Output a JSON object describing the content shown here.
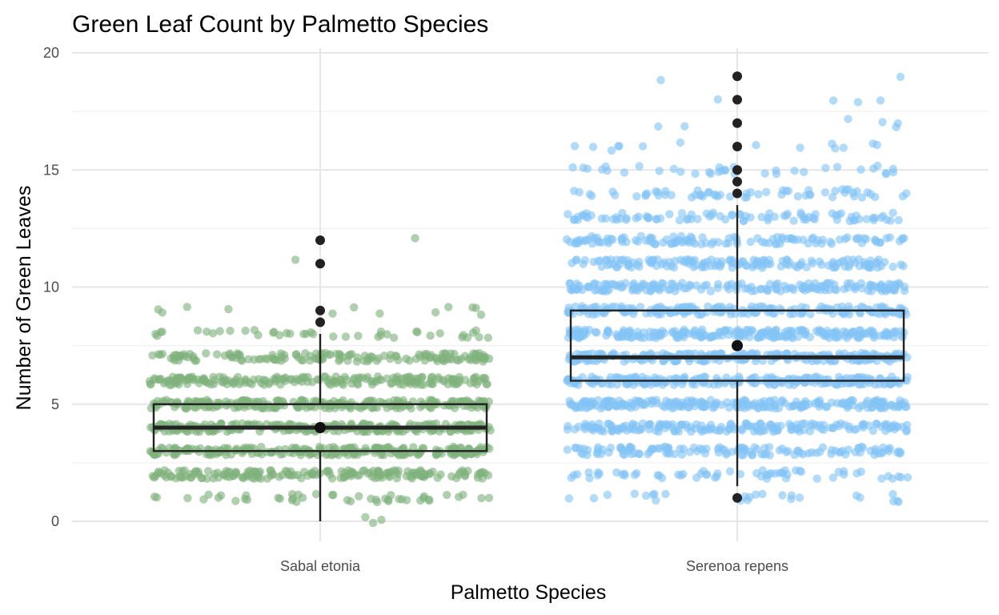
{
  "chart_data": {
    "type": "box",
    "title": "Green Leaf Count by Palmetto Species",
    "xlabel": "Palmetto Species",
    "ylabel": "Number of Green Leaves",
    "ylim": [
      -0.5,
      20.2
    ],
    "yticks": [
      0,
      5,
      10,
      15,
      20
    ],
    "ytick_labels": [
      "0",
      "5",
      "10",
      "15",
      "20"
    ],
    "categories": [
      "Sabal etonia",
      "Serenoa repens"
    ],
    "colors": {
      "Sabal etonia": "#80b17d",
      "Serenoa repens": "#82c4f5",
      "box_line": "#222222",
      "outlier": "#222222",
      "mean_point": "#111111"
    },
    "boxes": [
      {
        "category": "Sabal etonia",
        "q1": 3,
        "median": 4,
        "q3": 5,
        "whisker_low": 0,
        "whisker_high": 8,
        "mean": 4.0,
        "outliers": [
          8.5,
          9,
          11,
          12
        ]
      },
      {
        "category": "Serenoa repens",
        "q1": 6,
        "median": 7,
        "q3": 9,
        "whisker_low": 1.5,
        "whisker_high": 13.5,
        "mean": 7.5,
        "outliers": [
          1,
          14,
          14.5,
          15,
          16,
          17,
          18,
          19
        ]
      }
    ],
    "jitter_distribution": [
      {
        "category": "Sabal etonia",
        "value_counts": {
          "0": 3,
          "1": 45,
          "2": 180,
          "3": 230,
          "4": 260,
          "5": 240,
          "6": 200,
          "7": 150,
          "8": 40,
          "9": 12,
          "11": 1,
          "12": 1
        }
      },
      {
        "category": "Serenoa repens",
        "value_counts": {
          "1": 25,
          "2": 60,
          "3": 130,
          "4": 180,
          "5": 220,
          "6": 230,
          "7": 240,
          "8": 230,
          "9": 200,
          "10": 180,
          "11": 150,
          "12": 120,
          "13": 90,
          "14": 60,
          "15": 35,
          "16": 15,
          "17": 6,
          "18": 4,
          "19": 2
        }
      }
    ]
  }
}
